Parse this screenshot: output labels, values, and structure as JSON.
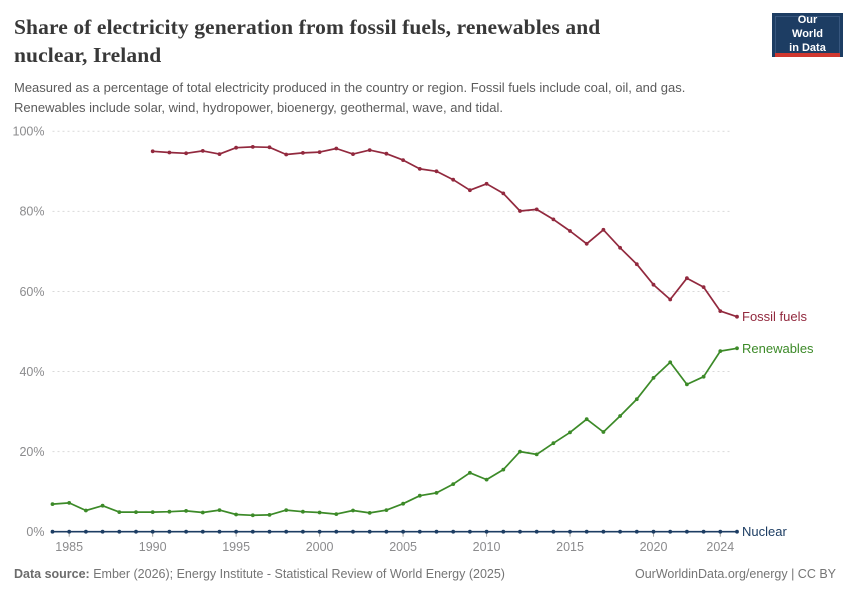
{
  "header": {
    "title": "Share of electricity generation from fossil fuels, renewables and nuclear, Ireland",
    "title_lines": [
      "Share of electricity generation from fossil fuels, renewables and",
      "nuclear, Ireland"
    ],
    "subtitle_lines": [
      "Measured as a percentage of total electricity produced in the country or region. Fossil fuels include coal, oil, and gas.",
      "Renewables include solar, wind, hydropower, bioenergy, geothermal, wave, and tidal."
    ]
  },
  "logo": {
    "line1": "Our World",
    "line2": "in Data",
    "bg_color": "#1D3D63",
    "bar_color": "#D0382F"
  },
  "chart_data": {
    "type": "line",
    "title": "Share of electricity generation from fossil fuels, renewables and nuclear, Ireland",
    "xlabel": "",
    "ylabel": "",
    "ylim": [
      0,
      100
    ],
    "x_start": 1984,
    "x_end": 2025,
    "x_ticks": [
      1985,
      1990,
      1995,
      2000,
      2005,
      2010,
      2015,
      2020,
      2024
    ],
    "y_ticks": [
      0,
      20,
      40,
      60,
      80,
      100
    ],
    "y_tick_suffix": "%",
    "grid": "horizontal-dashed",
    "grid_color": "#d9d9d9",
    "axis_label_color": "#8b8b8d",
    "legend_position": "end-of-line",
    "series": [
      {
        "name": "Fossil fuels",
        "color": "#92293E",
        "start_year": 1990,
        "values": [
          95.0,
          94.7,
          94.5,
          95.1,
          94.3,
          95.9,
          96.1,
          96.0,
          94.2,
          94.6,
          94.8,
          95.7,
          94.3,
          95.3,
          94.4,
          92.8,
          90.6,
          90.0,
          87.9,
          85.3,
          86.9,
          84.5,
          80.1,
          80.5,
          78.0,
          75.1,
          71.9,
          75.4,
          70.9,
          66.8,
          61.7,
          58.0,
          63.3,
          61.1,
          55.1,
          53.7
        ]
      },
      {
        "name": "Renewables",
        "color": "#3C8A28",
        "start_year": 1984,
        "values": [
          6.9,
          7.2,
          5.3,
          6.5,
          4.9,
          4.9,
          4.9,
          5.0,
          5.2,
          4.8,
          5.4,
          4.3,
          4.1,
          4.2,
          5.4,
          5.0,
          4.8,
          4.4,
          5.3,
          4.7,
          5.4,
          7.0,
          9.0,
          9.7,
          11.9,
          14.7,
          13.0,
          15.5,
          20.0,
          19.3,
          22.1,
          24.8,
          28.1,
          24.9,
          28.9,
          33.1,
          38.4,
          42.3,
          36.8,
          38.7,
          45.1,
          45.8
        ]
      },
      {
        "name": "Nuclear",
        "color": "#1D3D63",
        "start_year": 1984,
        "values": [
          0,
          0,
          0,
          0,
          0,
          0,
          0,
          0,
          0,
          0,
          0,
          0,
          0,
          0,
          0,
          0,
          0,
          0,
          0,
          0,
          0,
          0,
          0,
          0,
          0,
          0,
          0,
          0,
          0,
          0,
          0,
          0,
          0,
          0,
          0,
          0,
          0,
          0,
          0,
          0,
          0,
          0
        ]
      }
    ]
  },
  "footer": {
    "data_source_label": "Data source:",
    "data_source_text": " Ember (2026); Energy Institute - Statistical Review of World Energy (2025)",
    "attribution": "OurWorldinData.org/energy | CC BY"
  }
}
